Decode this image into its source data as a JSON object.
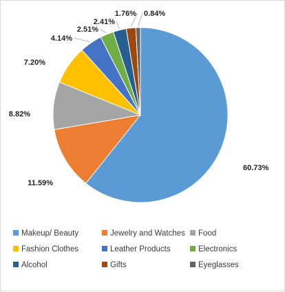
{
  "chart_data": {
    "type": "pie",
    "title": "",
    "start": "12 o'clock",
    "direction": "clockwise",
    "legend_position": "bottom",
    "slices": [
      {
        "label": "Makeup/ Beauty",
        "value": 60.73,
        "value_label": "60.73%",
        "color": "#5b9bd5"
      },
      {
        "label": "Jewelry and Watches",
        "value": 11.59,
        "value_label": "11.59%",
        "color": "#ed7d31"
      },
      {
        "label": "Food",
        "value": 8.82,
        "value_label": "8.82%",
        "color": "#a5a5a5"
      },
      {
        "label": "Fashion Clothes",
        "value": 7.2,
        "value_label": "7.20%",
        "color": "#ffc000"
      },
      {
        "label": "Leather Products",
        "value": 4.14,
        "value_label": "4.14%",
        "color": "#4472c4"
      },
      {
        "label": "Electronics",
        "value": 2.51,
        "value_label": "2.51%",
        "color": "#70ad47"
      },
      {
        "label": "Alcohol",
        "value": 2.41,
        "value_label": "2.41%",
        "color": "#255e91"
      },
      {
        "label": "Gifts",
        "value": 1.76,
        "value_label": "1.76%",
        "color": "#9e480e"
      },
      {
        "label": "Eyeglasses",
        "value": 0.84,
        "value_label": "0.84%",
        "color": "#636363"
      }
    ]
  }
}
